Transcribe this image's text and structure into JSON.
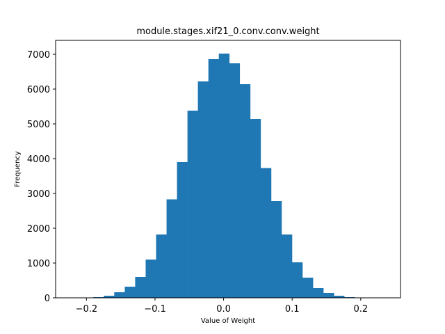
{
  "chart_data": {
    "type": "bar",
    "subtype": "histogram",
    "title": "module.stages.xif21_0.conv.conv.weight",
    "xlabel": "Value of Weight",
    "ylabel": "Frequency",
    "xlim": [
      -0.245,
      0.258
    ],
    "ylim": [
      0,
      7400
    ],
    "xticks": [
      -0.2,
      -0.1,
      0.0,
      0.1,
      0.2
    ],
    "xtick_labels": [
      "−0.2",
      "−0.1",
      "0.0",
      "0.1",
      "0.2"
    ],
    "yticks": [
      0,
      1000,
      2000,
      3000,
      4000,
      5000,
      6000,
      7000
    ],
    "ytick_labels": [
      "0",
      "1000",
      "2000",
      "3000",
      "4000",
      "5000",
      "6000",
      "7000"
    ],
    "grid": false,
    "bar_color": "#1f77b4",
    "bins": [
      {
        "x0": -0.2205,
        "x1": -0.2052,
        "count": 2
      },
      {
        "x0": -0.2052,
        "x1": -0.19,
        "count": 5
      },
      {
        "x0": -0.19,
        "x1": -0.1747,
        "count": 20
      },
      {
        "x0": -0.1747,
        "x1": -0.1595,
        "count": 60
      },
      {
        "x0": -0.1595,
        "x1": -0.1442,
        "count": 160
      },
      {
        "x0": -0.1442,
        "x1": -0.129,
        "count": 320
      },
      {
        "x0": -0.129,
        "x1": -0.1137,
        "count": 600
      },
      {
        "x0": -0.1137,
        "x1": -0.0985,
        "count": 1100
      },
      {
        "x0": -0.0985,
        "x1": -0.0832,
        "count": 1820
      },
      {
        "x0": -0.0832,
        "x1": -0.068,
        "count": 2830
      },
      {
        "x0": -0.068,
        "x1": -0.0527,
        "count": 3900
      },
      {
        "x0": -0.0527,
        "x1": -0.0375,
        "count": 5380
      },
      {
        "x0": -0.0375,
        "x1": -0.0222,
        "count": 6220
      },
      {
        "x0": -0.0222,
        "x1": -0.007,
        "count": 6860
      },
      {
        "x0": -0.007,
        "x1": 0.0083,
        "count": 7020
      },
      {
        "x0": 0.0083,
        "x1": 0.0235,
        "count": 6740
      },
      {
        "x0": 0.0235,
        "x1": 0.0388,
        "count": 6140
      },
      {
        "x0": 0.0388,
        "x1": 0.054,
        "count": 5140
      },
      {
        "x0": 0.054,
        "x1": 0.0693,
        "count": 3730
      },
      {
        "x0": 0.0693,
        "x1": 0.0845,
        "count": 2780
      },
      {
        "x0": 0.0845,
        "x1": 0.0998,
        "count": 1820
      },
      {
        "x0": 0.0998,
        "x1": 0.115,
        "count": 1020
      },
      {
        "x0": 0.115,
        "x1": 0.1303,
        "count": 580
      },
      {
        "x0": 0.1303,
        "x1": 0.1455,
        "count": 280
      },
      {
        "x0": 0.1455,
        "x1": 0.1608,
        "count": 140
      },
      {
        "x0": 0.1608,
        "x1": 0.176,
        "count": 60
      },
      {
        "x0": 0.176,
        "x1": 0.1913,
        "count": 20
      },
      {
        "x0": 0.1913,
        "x1": 0.2065,
        "count": 5
      },
      {
        "x0": 0.2065,
        "x1": 0.2218,
        "count": 2
      },
      {
        "x0": 0.2218,
        "x1": 0.237,
        "count": 1
      }
    ]
  }
}
